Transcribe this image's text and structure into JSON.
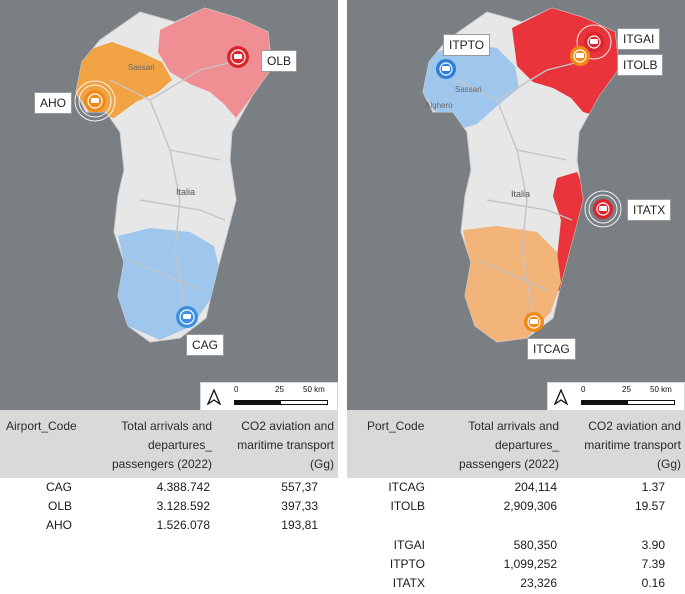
{
  "left_panel": {
    "map": {
      "country_label": "Italia",
      "city_labels": [
        "Sassari"
      ],
      "markers": [
        {
          "code": "OLB",
          "color": "#d9252b",
          "region_color": "#ef8f93"
        },
        {
          "code": "AHO",
          "color": "#ee8a18",
          "region_color": "#f1a344"
        },
        {
          "code": "CAG",
          "color": "#3d8fe0",
          "region_color": "#9fc7ee"
        }
      ],
      "scale": {
        "ticks": [
          "0",
          "25",
          "50 km"
        ],
        "north_icon": "north-arrow-icon"
      }
    },
    "table": {
      "headers": {
        "code": "Airport_Code",
        "passengers": [
          "Total arrivals and",
          "departures_",
          "passengers (2022)"
        ],
        "co2": [
          "CO2 aviation and",
          "maritime transport",
          "(Gg)"
        ]
      },
      "rows": [
        {
          "code": "CAG",
          "passengers": "4.388.742",
          "co2": "557,37"
        },
        {
          "code": "OLB",
          "passengers": "3.128.592",
          "co2": "397,33"
        },
        {
          "code": "AHO",
          "passengers": "1.526.078",
          "co2": "193,81"
        }
      ]
    }
  },
  "right_panel": {
    "map": {
      "country_label": "Italia",
      "city_labels": [
        "Sassari",
        "Alghero"
      ],
      "markers": [
        {
          "code": "ITPTO",
          "color": "#2f7fd8",
          "region_color": "#9fc7ee"
        },
        {
          "code": "ITGAI",
          "color": "#d9252b",
          "region_color": "#e8343a"
        },
        {
          "code": "ITOLB",
          "color": "#ee8a18",
          "region_color": "#e8343a"
        },
        {
          "code": "ITATX",
          "color": "#d9252b",
          "region_color": "#e8343a"
        },
        {
          "code": "ITCAG",
          "color": "#ee8a18",
          "region_color": "#f3b47a"
        }
      ],
      "scale": {
        "ticks": [
          "0",
          "25",
          "50 km"
        ],
        "north_icon": "north-arrow-icon"
      }
    },
    "table": {
      "headers": {
        "code": "Port_Code",
        "passengers": [
          "Total arrivals and",
          "departures_",
          "passengers (2022)"
        ],
        "co2": [
          "CO2 aviation and",
          "maritime transport",
          "(Gg)"
        ]
      },
      "rows": [
        {
          "code": "ITCAG",
          "passengers": "204,114",
          "co2": "1.37"
        },
        {
          "code": "ITOLB",
          "passengers": "2,909,306",
          "co2": "19.57"
        },
        {
          "code": "ITGAI",
          "passengers": "580,350",
          "co2": "3.90"
        },
        {
          "code": "ITPTO",
          "passengers": "1,099,252",
          "co2": "7.39"
        },
        {
          "code": "ITATX",
          "passengers": "23,326",
          "co2": "0.16"
        }
      ]
    }
  },
  "colors": {
    "map_bg": "#7a7f84",
    "island": "#e7e7e7",
    "road": "#c4c4c4",
    "header_bg": "#d9d9d9"
  }
}
